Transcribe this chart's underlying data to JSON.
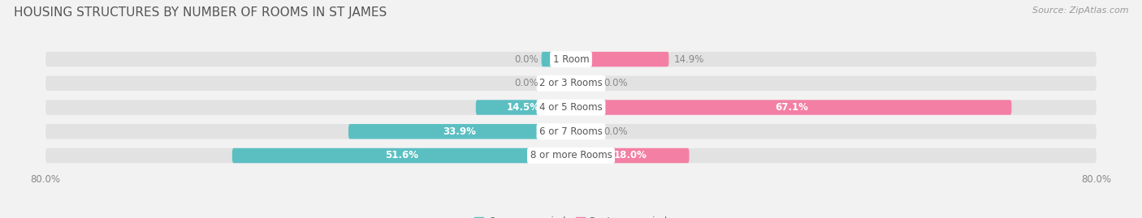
{
  "title": "HOUSING STRUCTURES BY NUMBER OF ROOMS IN ST JAMES",
  "source": "Source: ZipAtlas.com",
  "categories": [
    "1 Room",
    "2 or 3 Rooms",
    "4 or 5 Rooms",
    "6 or 7 Rooms",
    "8 or more Rooms"
  ],
  "owner_values": [
    0.0,
    0.0,
    14.5,
    33.9,
    51.6
  ],
  "renter_values": [
    14.9,
    0.0,
    67.1,
    0.0,
    18.0
  ],
  "owner_color": "#5bbfc2",
  "renter_color": "#f47fa4",
  "axis_min": -80.0,
  "axis_max": 80.0,
  "bg_color": "#f2f2f2",
  "bar_bg_color": "#e2e2e2",
  "bar_height": 0.62,
  "title_fontsize": 11,
  "label_fontsize": 8.5,
  "tick_fontsize": 8.5,
  "source_fontsize": 8.0,
  "small_bar_stub": 4.5,
  "label_threshold": 6.0
}
